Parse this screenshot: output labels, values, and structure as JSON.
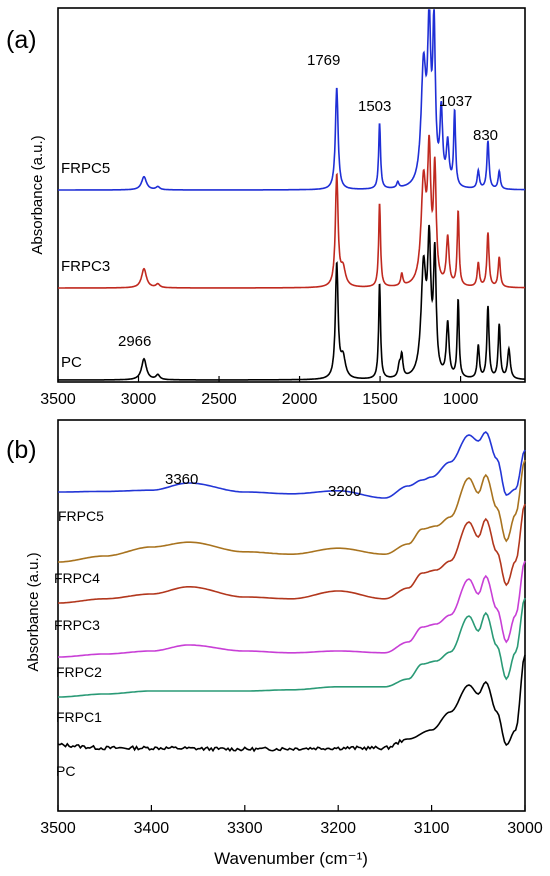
{
  "chart_data": [
    {
      "panel_label": "(a)",
      "type": "line",
      "xlabel": "",
      "ylabel": "Absorbance (a.u.)",
      "xlim": [
        3500,
        600
      ],
      "x_ticks": [
        3500,
        3000,
        2500,
        2000,
        1500,
        1000
      ],
      "x_reversed": true,
      "y_ticks_shown": false,
      "grid": false,
      "legend": "none; series labels printed beside curves",
      "colors": {
        "PC": "#000000",
        "FRPC3": "#c0291f",
        "FRPC5": "#1f2fd6"
      },
      "series": [
        {
          "name": "PC",
          "baseline": 0,
          "peaks": [
            [
              2966,
              0.35,
              18
            ],
            [
              2880,
              0.08,
              14
            ],
            [
              1769,
              1.9,
              10
            ],
            [
              1730,
              0.35,
              18
            ],
            [
              1503,
              1.6,
              7
            ],
            [
              1380,
              0.2,
              10
            ],
            [
              1365,
              0.35,
              8
            ],
            [
              1230,
              1.8,
              18
            ],
            [
              1195,
              2.05,
              12
            ],
            [
              1160,
              1.95,
              10
            ],
            [
              1080,
              0.9,
              10
            ],
            [
              1015,
              1.3,
              7
            ],
            [
              890,
              0.55,
              8
            ],
            [
              830,
              1.2,
              8
            ],
            [
              760,
              0.9,
              8
            ],
            [
              700,
              0.5,
              10
            ]
          ]
        },
        {
          "name": "FRPC3",
          "baseline": 0,
          "peaks": [
            [
              2966,
              0.32,
              18
            ],
            [
              2880,
              0.06,
              14
            ],
            [
              1769,
              1.85,
              10
            ],
            [
              1730,
              0.3,
              18
            ],
            [
              1503,
              1.4,
              7
            ],
            [
              1365,
              0.2,
              8
            ],
            [
              1230,
              1.7,
              18
            ],
            [
              1195,
              2.05,
              12
            ],
            [
              1160,
              1.85,
              10
            ],
            [
              1080,
              0.8,
              10
            ],
            [
              1015,
              1.25,
              7
            ],
            [
              890,
              0.4,
              8
            ],
            [
              830,
              0.9,
              8
            ],
            [
              760,
              0.5,
              8
            ]
          ]
        },
        {
          "name": "FRPC5",
          "baseline": 0,
          "peaks": [
            [
              2966,
              0.22,
              18
            ],
            [
              2880,
              0.05,
              14
            ],
            [
              1769,
              1.7,
              10
            ],
            [
              1503,
              1.1,
              7
            ],
            [
              1390,
              0.1,
              8
            ],
            [
              1230,
              1.95,
              18
            ],
            [
              1195,
              2.45,
              12
            ],
            [
              1165,
              2.5,
              10
            ],
            [
              1120,
              1.2,
              10
            ],
            [
              1080,
              0.7,
              10
            ],
            [
              1037,
              1.25,
              7
            ],
            [
              890,
              0.3,
              8
            ],
            [
              830,
              0.8,
              8
            ],
            [
              760,
              0.3,
              8
            ]
          ]
        }
      ],
      "annotations": [
        "1769",
        "1503",
        "1037",
        "830",
        "2966"
      ]
    },
    {
      "panel_label": "(b)",
      "type": "line",
      "xlabel": "Wavenumber (cm⁻¹)",
      "ylabel": "Absorbance (a.u.)",
      "xlim": [
        3500,
        3000
      ],
      "x_ticks": [
        3500,
        3400,
        3300,
        3200,
        3100,
        3000
      ],
      "x_reversed": true,
      "y_ticks_shown": false,
      "grid": false,
      "legend": "none; series labels printed beside curves",
      "colors": {
        "PC": "#000000",
        "FRPC1": "#2a9a76",
        "FRPC2": "#c83fd6",
        "FRPC3": "#b2371d",
        "FRPC4": "#a8731f",
        "FRPC5": "#2336d6"
      },
      "series": [
        {
          "name": "PC",
          "shape": [
            [
              3500,
              0.05
            ],
            [
              3450,
              0.0
            ],
            [
              3400,
              0.0
            ],
            [
              3300,
              -0.02
            ],
            [
              3200,
              0.0
            ],
            [
              3150,
              0.0
            ],
            [
              3125,
              0.15
            ],
            [
              3100,
              0.3
            ],
            [
              3080,
              0.6
            ],
            [
              3060,
              1.05
            ],
            [
              3050,
              0.9
            ],
            [
              3042,
              1.1
            ],
            [
              3030,
              0.6
            ],
            [
              3020,
              0.05
            ],
            [
              3010,
              0.3
            ],
            [
              3000,
              1.55
            ]
          ]
        },
        {
          "name": "FRPC1",
          "shape": [
            [
              3500,
              0.05
            ],
            [
              3450,
              0.1
            ],
            [
              3400,
              0.15
            ],
            [
              3300,
              0.15
            ],
            [
              3250,
              0.17
            ],
            [
              3200,
              0.22
            ],
            [
              3150,
              0.22
            ],
            [
              3125,
              0.35
            ],
            [
              3110,
              0.6
            ],
            [
              3095,
              0.65
            ],
            [
              3080,
              0.8
            ],
            [
              3060,
              1.4
            ],
            [
              3050,
              1.15
            ],
            [
              3042,
              1.45
            ],
            [
              3030,
              0.9
            ],
            [
              3020,
              0.35
            ],
            [
              3010,
              0.8
            ],
            [
              3000,
              1.7
            ]
          ]
        },
        {
          "name": "FRPC2",
          "shape": [
            [
              3500,
              0.05
            ],
            [
              3450,
              0.1
            ],
            [
              3400,
              0.15
            ],
            [
              3360,
              0.25
            ],
            [
              3300,
              0.15
            ],
            [
              3250,
              0.12
            ],
            [
              3200,
              0.15
            ],
            [
              3150,
              0.12
            ],
            [
              3125,
              0.3
            ],
            [
              3110,
              0.55
            ],
            [
              3095,
              0.6
            ],
            [
              3080,
              0.75
            ],
            [
              3060,
              1.35
            ],
            [
              3050,
              1.1
            ],
            [
              3042,
              1.4
            ],
            [
              3030,
              0.85
            ],
            [
              3020,
              0.3
            ],
            [
              3010,
              0.75
            ],
            [
              3000,
              1.65
            ]
          ]
        },
        {
          "name": "FRPC3",
          "shape": [
            [
              3500,
              0.05
            ],
            [
              3450,
              0.12
            ],
            [
              3400,
              0.2
            ],
            [
              3360,
              0.32
            ],
            [
              3300,
              0.15
            ],
            [
              3250,
              0.12
            ],
            [
              3200,
              0.25
            ],
            [
              3150,
              0.12
            ],
            [
              3125,
              0.3
            ],
            [
              3110,
              0.55
            ],
            [
              3095,
              0.6
            ],
            [
              3080,
              0.75
            ],
            [
              3060,
              1.4
            ],
            [
              3050,
              1.15
            ],
            [
              3042,
              1.45
            ],
            [
              3030,
              0.9
            ],
            [
              3020,
              0.35
            ],
            [
              3010,
              0.75
            ],
            [
              3000,
              1.7
            ]
          ]
        },
        {
          "name": "FRPC4",
          "shape": [
            [
              3500,
              0.05
            ],
            [
              3450,
              0.15
            ],
            [
              3400,
              0.3
            ],
            [
              3360,
              0.38
            ],
            [
              3300,
              0.22
            ],
            [
              3250,
              0.18
            ],
            [
              3200,
              0.28
            ],
            [
              3150,
              0.18
            ],
            [
              3125,
              0.35
            ],
            [
              3110,
              0.6
            ],
            [
              3095,
              0.65
            ],
            [
              3080,
              0.8
            ],
            [
              3060,
              1.45
            ],
            [
              3050,
              1.2
            ],
            [
              3042,
              1.5
            ],
            [
              3030,
              0.95
            ],
            [
              3020,
              0.4
            ],
            [
              3010,
              0.85
            ],
            [
              3000,
              1.75
            ]
          ]
        },
        {
          "name": "FRPC5",
          "shape": [
            [
              3500,
              0.05
            ],
            [
              3450,
              0.06
            ],
            [
              3400,
              0.08
            ],
            [
              3360,
              0.2
            ],
            [
              3300,
              0.05
            ],
            [
              3250,
              0.02
            ],
            [
              3200,
              0.07
            ],
            [
              3150,
              -0.05
            ],
            [
              3125,
              0.15
            ],
            [
              3110,
              0.25
            ],
            [
              3100,
              0.3
            ],
            [
              3080,
              0.55
            ],
            [
              3060,
              1.0
            ],
            [
              3050,
              0.9
            ],
            [
              3042,
              1.05
            ],
            [
              3030,
              0.6
            ],
            [
              3020,
              0.0
            ],
            [
              3010,
              0.1
            ],
            [
              3000,
              0.75
            ]
          ]
        }
      ],
      "annotations": [
        "3360",
        "3200"
      ]
    }
  ]
}
